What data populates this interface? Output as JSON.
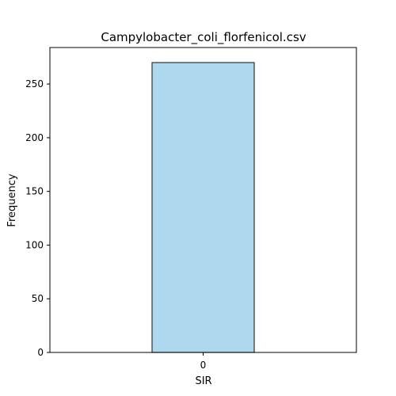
{
  "chart_data": {
    "type": "bar",
    "title": "Campylobacter_coli_florfenicol.csv",
    "xlabel": "SIR",
    "ylabel": "Frequency",
    "categories": [
      "0"
    ],
    "values": [
      270
    ],
    "ylim": [
      0,
      284
    ],
    "yticks": [
      0,
      50,
      100,
      150,
      200,
      250
    ],
    "grid": false,
    "bar_color": "#add8ed",
    "bar_edge_color": "#333333"
  }
}
